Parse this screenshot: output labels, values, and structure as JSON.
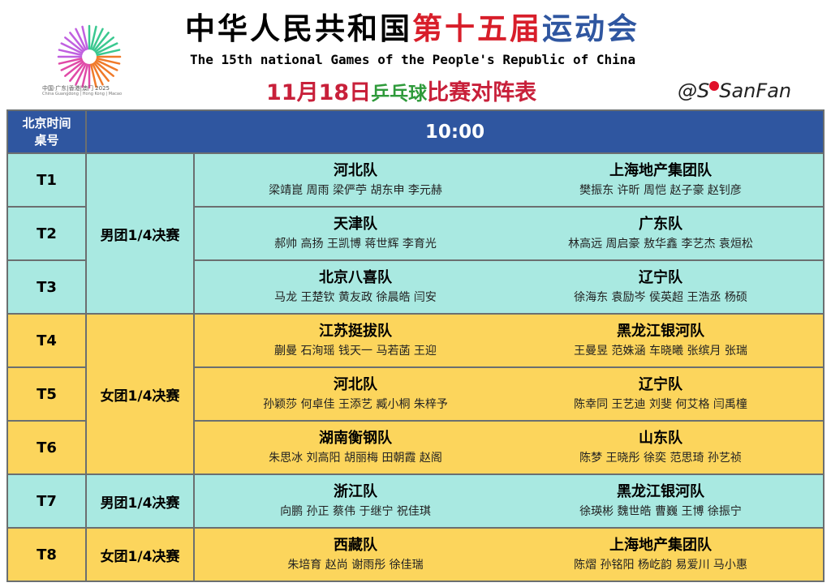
{
  "header": {
    "logo_caption": "中国·广东|香港|澳门 2025",
    "logo_caption_en": "China Guangdong | Hong Kong | Macao",
    "title_part1": "中华人民共和国",
    "title_part2": "第十五届",
    "title_part3": "运动会",
    "subtitle": "The 15th national Games of the People's Republic of China",
    "date": "11月18日",
    "sport": "乒乓球",
    "schedule": "比赛对阵表",
    "handle_prefix": "@S",
    "handle_suffix": "SanFan",
    "colors": {
      "red": "#d81e2a",
      "blue": "#2f56a0",
      "green": "#2e9a3a"
    }
  },
  "table": {
    "col_header": "北京时间\n桌号",
    "time": "10:00",
    "colors": {
      "header": "#2f56a0",
      "men": "#a9e9e1",
      "women": "#fcd55c"
    },
    "rows": [
      {
        "table": "T1",
        "event": "男团1/4决赛",
        "home": "河北队",
        "home_players": "梁靖崑 周雨 梁俨苧 胡东申 李元赫",
        "away": "上海地产集团队",
        "away_players": "樊振东 许昕 周恺 赵子豪 赵钊彦"
      },
      {
        "table": "T2",
        "event": "男团1/4决赛",
        "home": "天津队",
        "home_players": "郝帅 高扬 王凯博 蒋世辉 李育光",
        "away": "广东队",
        "away_players": "林高远 周启豪 敖华鑫 李艺杰 袁烜松"
      },
      {
        "table": "T3",
        "event": "男团1/4决赛",
        "home": "北京八喜队",
        "home_players": "马龙 王楚钦 黄友政 徐晨皓 闫安",
        "away": "辽宁队",
        "away_players": "徐海东 袁励岑 侯英超 王浩丞 杨硕"
      },
      {
        "table": "T4",
        "event": "女团1/4决赛",
        "home": "江苏挺拔队",
        "home_players": "蒯曼 石洵瑶 钱天一 马若菡 王迎",
        "away": "黑龙江银河队",
        "away_players": "王曼昱 范姝涵 车晓曦 张缤月 张瑞"
      },
      {
        "table": "T5",
        "event": "女团1/4决赛",
        "home": "河北队",
        "home_players": "孙颖莎 何卓佳 王添艺 臧小桐 朱梓予",
        "away": "辽宁队",
        "away_players": "陈幸同 王艺迪 刘斐 何艾格 闫禹橦"
      },
      {
        "table": "T6",
        "event": "女团1/4决赛",
        "home": "湖南衡钢队",
        "home_players": "朱思冰 刘高阳 胡丽梅 田朝霞 赵阁",
        "away": "山东队",
        "away_players": "陈梦 王晓彤 徐奕 范思琦 孙艺祯"
      },
      {
        "table": "T7",
        "event": "男团1/4决赛",
        "home": "浙江队",
        "home_players": "向鹏 孙正 蔡伟 于继宁 祝佳琪",
        "away": "黑龙江银河队",
        "away_players": "徐瑛彬 魏世皓 曹巍 王博 徐振宁"
      },
      {
        "table": "T8",
        "event": "女团1/4决赛",
        "home": "西藏队",
        "home_players": "朱培育 赵尚 谢雨彤 徐佳瑞",
        "away": "上海地产集团队",
        "away_players": "陈熠 孙铭阳 杨屹韵 易爱川 马小惠"
      }
    ]
  }
}
